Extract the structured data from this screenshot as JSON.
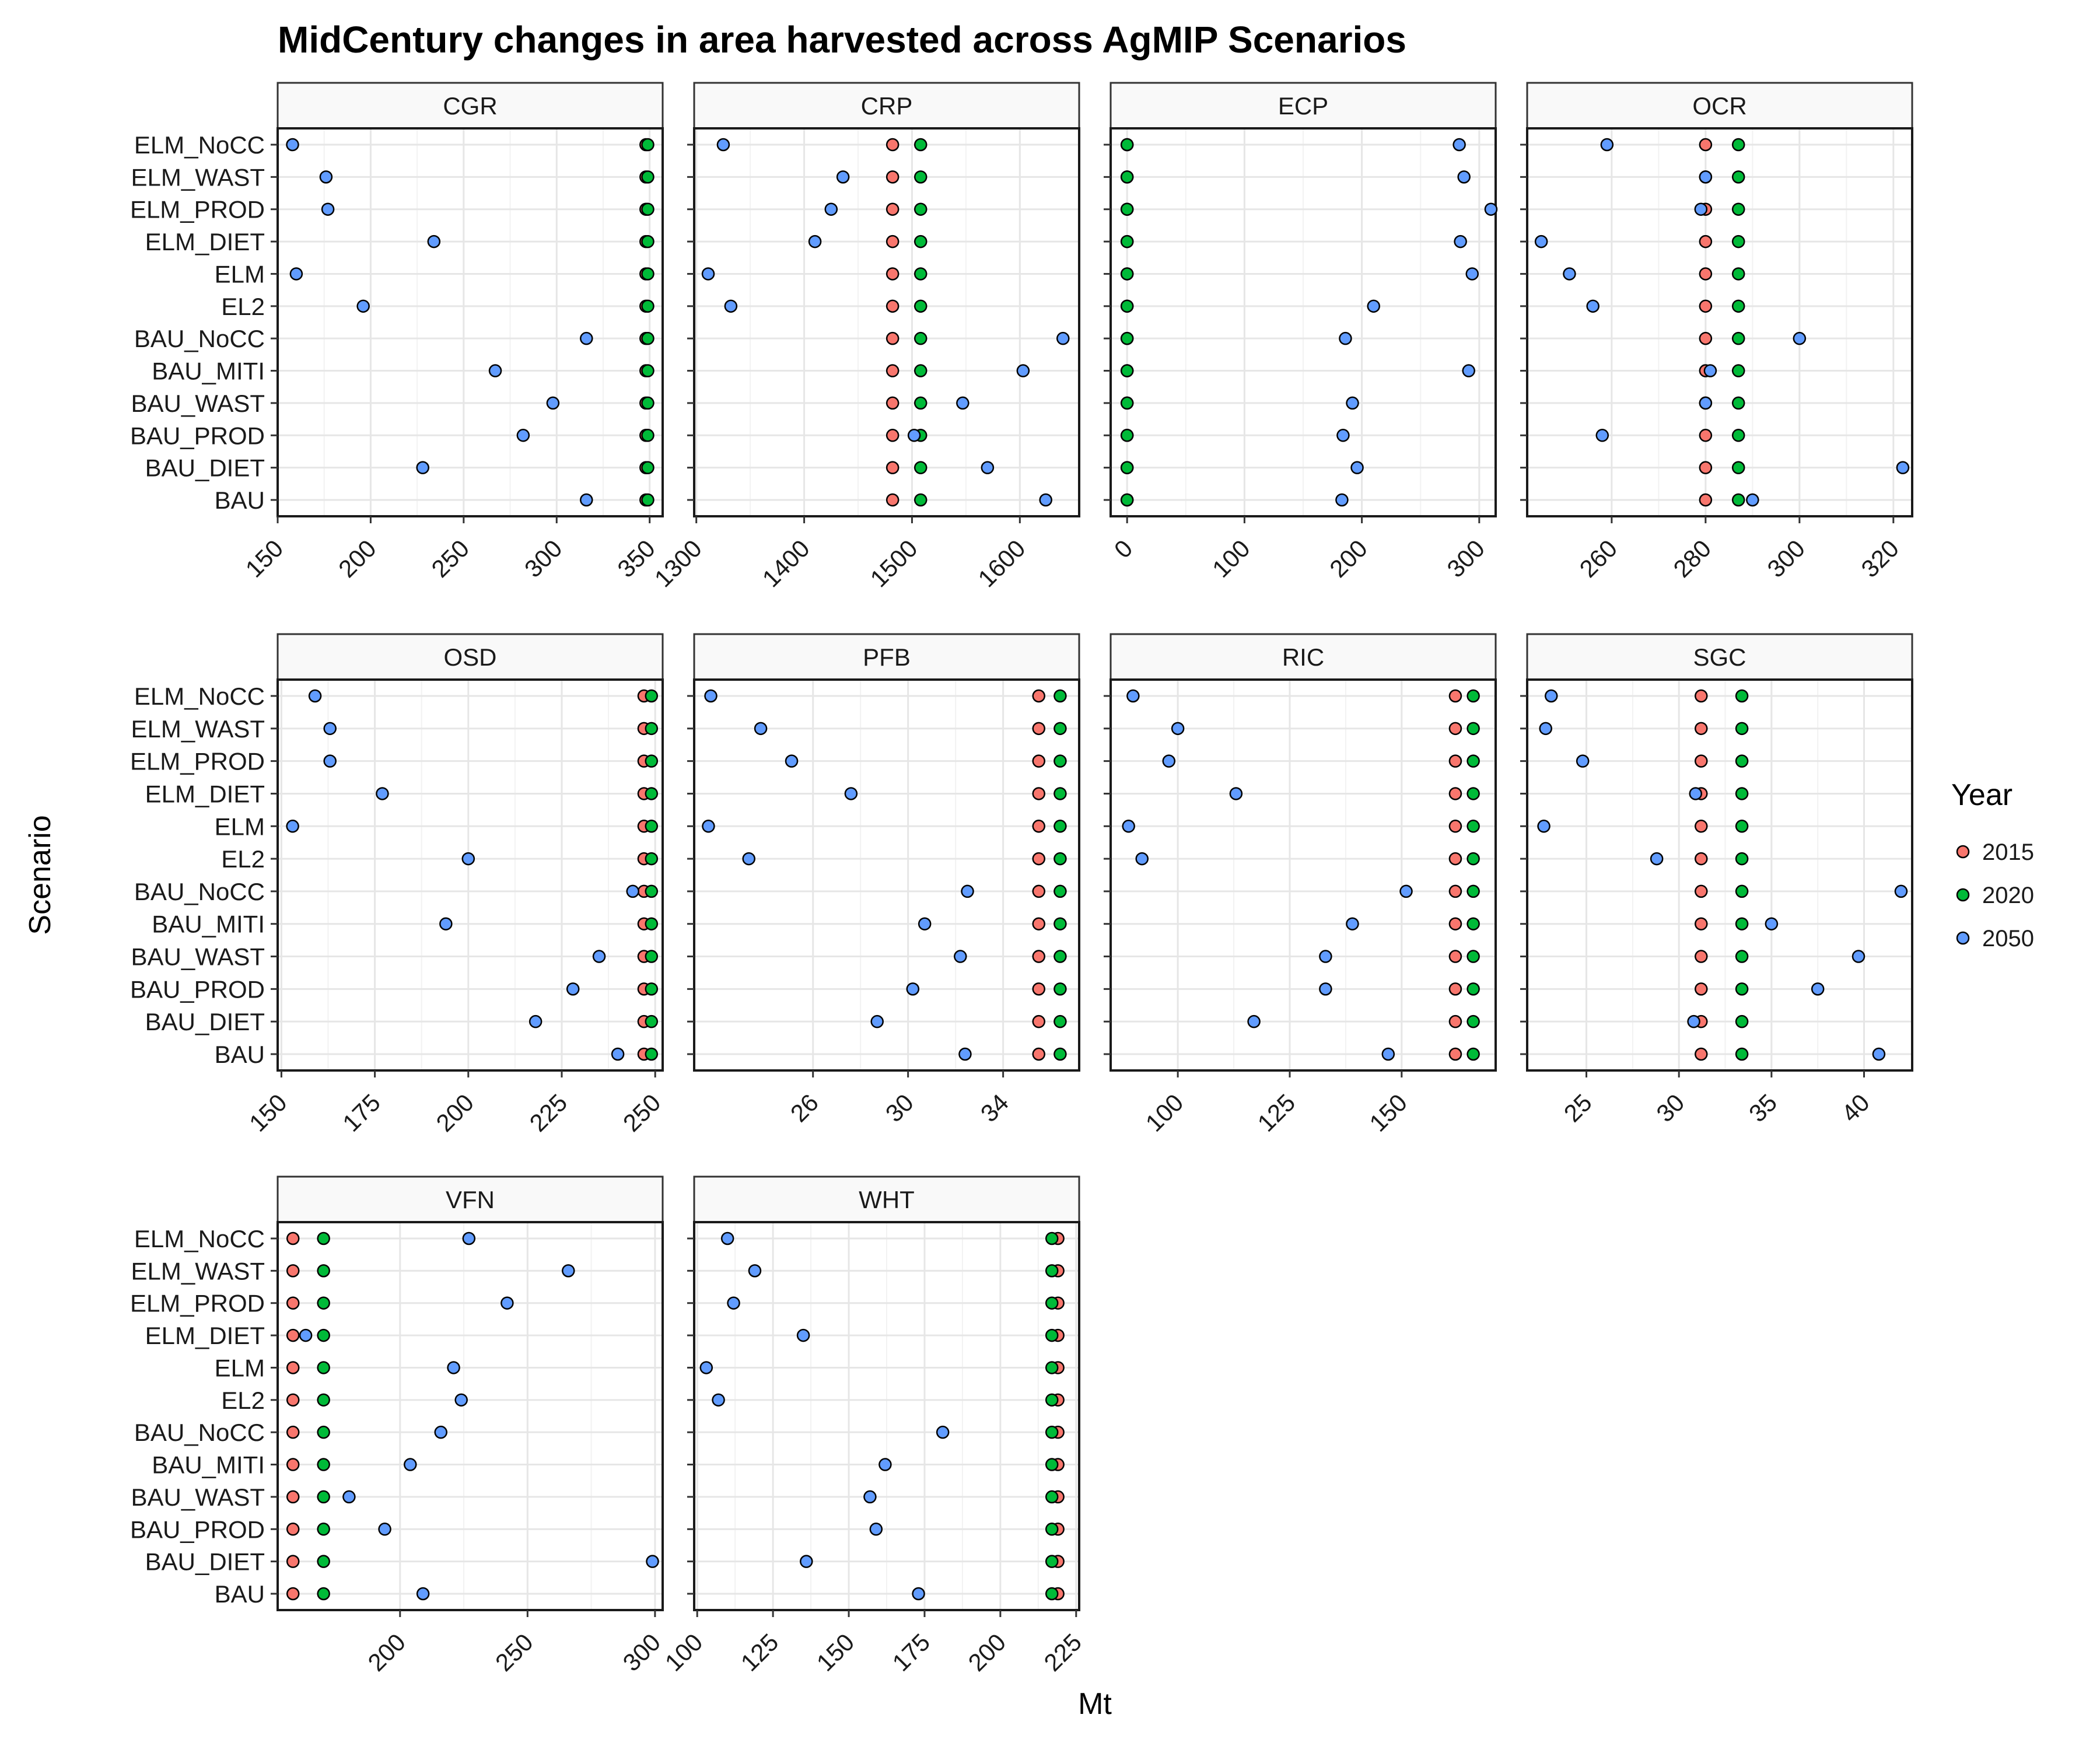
{
  "chart_data": {
    "type": "scatter",
    "title": "MidCentury changes in area harvested across AgMIP Scenarios",
    "xlabel": "Mt",
    "ylabel": "Scenario",
    "legend": {
      "title": "Year",
      "placement": "right",
      "entries": [
        "2015",
        "2020",
        "2050"
      ]
    },
    "colors": {
      "2015": "#F8766D",
      "2020": "#00BA38",
      "2050": "#619CFF"
    },
    "grid": true,
    "scenarios": [
      "BAU",
      "BAU_DIET",
      "BAU_PROD",
      "BAU_WAST",
      "BAU_MITI",
      "BAU_NoCC",
      "EL2",
      "ELM",
      "ELM_DIET",
      "ELM_PROD",
      "ELM_WAST",
      "ELM_NoCC"
    ],
    "panels": [
      {
        "name": "CGR",
        "xlim": [
          150,
          357
        ],
        "ticks": [
          150,
          200,
          250,
          300,
          350
        ],
        "tick_labels": [
          "150",
          "200",
          "250",
          "300",
          "350"
        ],
        "series": [
          {
            "name": "2015",
            "values": [
              348,
              348,
              348,
              348,
              348,
              348,
              348,
              348,
              348,
              348,
              348,
              348
            ]
          },
          {
            "name": "2020",
            "values": [
              349,
              349,
              349,
              349,
              349,
              349,
              349,
              349,
              349,
              349,
              349,
              349
            ]
          },
          {
            "name": "2050",
            "values": [
              316,
              228,
              282,
              298,
              267,
              316,
              196,
              160,
              234,
              177,
              176,
              158
            ]
          }
        ]
      },
      {
        "name": "CRP",
        "xlim": [
          1298,
          1655
        ],
        "ticks": [
          1300,
          1400,
          1500,
          1600
        ],
        "tick_labels": [
          "1300",
          "1400",
          "1500",
          "1600"
        ],
        "series": [
          {
            "name": "2015",
            "values": [
              1482,
              1482,
              1482,
              1482,
              1482,
              1482,
              1482,
              1482,
              1482,
              1482,
              1482,
              1482
            ]
          },
          {
            "name": "2020",
            "values": [
              1508,
              1508,
              1508,
              1508,
              1508,
              1508,
              1508,
              1508,
              1508,
              1508,
              1508,
              1508
            ]
          },
          {
            "name": "2050",
            "values": [
              1624,
              1570,
              1502,
              1547,
              1603,
              1640,
              1332,
              1311,
              1410,
              1425,
              1436,
              1325
            ]
          }
        ]
      },
      {
        "name": "ECP",
        "xlim": [
          -14,
          314
        ],
        "ticks": [
          0,
          100,
          200,
          300
        ],
        "tick_labels": [
          "0",
          "100",
          "200",
          "300"
        ],
        "series": [
          {
            "name": "2015",
            "values": [
              0,
              0,
              0,
              0,
              0,
              0,
              0,
              0,
              0,
              0,
              0,
              0
            ]
          },
          {
            "name": "2020",
            "values": [
              0,
              0,
              0,
              0,
              0,
              0,
              0,
              0,
              0,
              0,
              0,
              0
            ]
          },
          {
            "name": "2050",
            "values": [
              183,
              196,
              184,
              192,
              291,
              186,
              210,
              294,
              284,
              310,
              287,
              283
            ]
          }
        ]
      },
      {
        "name": "OCR",
        "xlim": [
          242,
          324
        ],
        "ticks": [
          260,
          280,
          300,
          320
        ],
        "tick_labels": [
          "260",
          "280",
          "300",
          "320"
        ],
        "series": [
          {
            "name": "2015",
            "values": [
              280,
              280,
              280,
              280,
              280,
              280,
              280,
              280,
              280,
              280,
              280,
              280
            ]
          },
          {
            "name": "2020",
            "values": [
              287,
              287,
              287,
              287,
              287,
              287,
              287,
              287,
              287,
              287,
              287,
              287
            ]
          },
          {
            "name": "2050",
            "values": [
              290,
              322,
              258,
              280,
              281,
              300,
              256,
              251,
              245,
              279,
              280,
              259
            ]
          }
        ]
      },
      {
        "name": "OSD",
        "xlim": [
          149,
          252
        ],
        "ticks": [
          150,
          175,
          200,
          225,
          250
        ],
        "tick_labels": [
          "150",
          "175",
          "200",
          "225",
          "250"
        ],
        "series": [
          {
            "name": "2015",
            "values": [
              247,
              247,
              247,
              247,
              247,
              247,
              247,
              247,
              247,
              247,
              247,
              247
            ]
          },
          {
            "name": "2020",
            "values": [
              249,
              249,
              249,
              249,
              249,
              249,
              249,
              249,
              249,
              249,
              249,
              249
            ]
          },
          {
            "name": "2050",
            "values": [
              240,
              218,
              228,
              235,
              194,
              244,
              200,
              153,
              177,
              163,
              163,
              159
            ]
          }
        ]
      },
      {
        "name": "PFB",
        "xlim": [
          21.0,
          37.2
        ],
        "ticks": [
          26,
          30,
          34
        ],
        "tick_labels": [
          "26",
          "30",
          "34"
        ],
        "series": [
          {
            "name": "2015",
            "values": [
              35.5,
              35.5,
              35.5,
              35.5,
              35.5,
              35.5,
              35.5,
              35.5,
              35.5,
              35.5,
              35.5,
              35.5
            ]
          },
          {
            "name": "2020",
            "values": [
              36.4,
              36.4,
              36.4,
              36.4,
              36.4,
              36.4,
              36.4,
              36.4,
              36.4,
              36.4,
              36.4,
              36.4
            ]
          },
          {
            "name": "2050",
            "values": [
              32.4,
              28.7,
              30.2,
              32.2,
              30.7,
              32.5,
              23.3,
              21.6,
              27.6,
              25.1,
              23.8,
              21.7
            ]
          }
        ]
      },
      {
        "name": "RIC",
        "xlim": [
          85,
          171
        ],
        "ticks": [
          100,
          125,
          150
        ],
        "tick_labels": [
          "100",
          "125",
          "150"
        ],
        "series": [
          {
            "name": "2015",
            "values": [
              162,
              162,
              162,
              162,
              162,
              162,
              162,
              162,
              162,
              162,
              162,
              162
            ]
          },
          {
            "name": "2020",
            "values": [
              166,
              166,
              166,
              166,
              166,
              166,
              166,
              166,
              166,
              166,
              166,
              166
            ]
          },
          {
            "name": "2050",
            "values": [
              147,
              117,
              133,
              133,
              139,
              151,
              92,
              89,
              113,
              98,
              100,
              90
            ]
          }
        ]
      },
      {
        "name": "SGC",
        "xlim": [
          21.8,
          42.6
        ],
        "ticks": [
          25,
          30,
          35,
          40
        ],
        "tick_labels": [
          "25",
          "30",
          "35",
          "40"
        ],
        "series": [
          {
            "name": "2015",
            "values": [
              31.2,
              31.2,
              31.2,
              31.2,
              31.2,
              31.2,
              31.2,
              31.2,
              31.2,
              31.2,
              31.2,
              31.2
            ]
          },
          {
            "name": "2020",
            "values": [
              33.4,
              33.4,
              33.4,
              33.4,
              33.4,
              33.4,
              33.4,
              33.4,
              33.4,
              33.4,
              33.4,
              33.4
            ]
          },
          {
            "name": "2050",
            "values": [
              40.8,
              30.8,
              37.5,
              39.7,
              35.0,
              42.0,
              28.8,
              22.7,
              30.9,
              24.8,
              22.8,
              23.1
            ]
          }
        ]
      },
      {
        "name": "VFN",
        "xlim": [
          152,
          303
        ],
        "ticks": [
          200,
          250,
          300
        ],
        "tick_labels": [
          "200",
          "250",
          "300"
        ],
        "series": [
          {
            "name": "2015",
            "values": [
              158,
              158,
              158,
              158,
              158,
              158,
              158,
              158,
              158,
              158,
              158,
              158
            ]
          },
          {
            "name": "2020",
            "values": [
              170,
              170,
              170,
              170,
              170,
              170,
              170,
              170,
              170,
              170,
              170,
              170
            ]
          },
          {
            "name": "2050",
            "values": [
              209,
              299,
              194,
              180,
              204,
              216,
              224,
              221,
              163,
              242,
              266,
              227
            ]
          }
        ]
      },
      {
        "name": "WHT",
        "xlim": [
          99,
          226
        ],
        "ticks": [
          100,
          125,
          150,
          175,
          200,
          225
        ],
        "tick_labels": [
          "100",
          "125",
          "150",
          "175",
          "200",
          "225"
        ],
        "series": [
          {
            "name": "2015",
            "values": [
              219,
              219,
              219,
              219,
              219,
              219,
              219,
              219,
              219,
              219,
              219,
              219
            ]
          },
          {
            "name": "2020",
            "values": [
              217,
              217,
              217,
              217,
              217,
              217,
              217,
              217,
              217,
              217,
              217,
              217
            ]
          },
          {
            "name": "2050",
            "values": [
              173,
              136,
              159,
              157,
              162,
              181,
              107,
              103,
              135,
              112,
              119,
              110
            ]
          }
        ]
      }
    ]
  }
}
